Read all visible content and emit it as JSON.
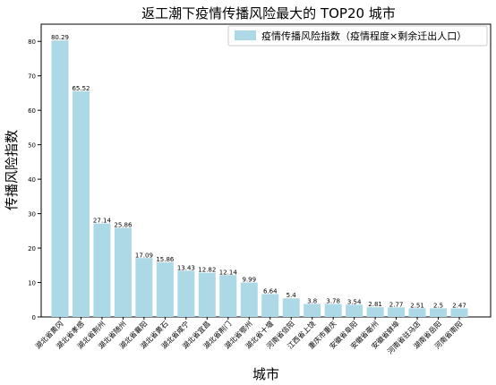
{
  "chart_data": {
    "type": "bar",
    "title": "返工潮下疫情传播风险最大的 TOP20 城市",
    "xlabel": "城市",
    "ylabel": "传播风险指数",
    "ylim": [
      0,
      85
    ],
    "yticks": [
      0,
      10,
      20,
      30,
      40,
      50,
      60,
      70,
      80
    ],
    "legend_position": "top-right",
    "grid": false,
    "series": [
      {
        "name": "疫情传播风险指数（疫情程度×剩余迁出人口）",
        "color": "#add8e6"
      }
    ],
    "categories": [
      "湖北省黄冈",
      "湖北省孝感",
      "湖北省荆州",
      "湖北省随州",
      "湖北省襄阳",
      "湖北省黄石",
      "湖北省咸宁",
      "湖北省宜昌",
      "湖北省荆门",
      "湖北省鄂州",
      "湖北省十堰",
      "河南省信阳",
      "江西省上饶",
      "重庆市重庆",
      "安徽省阜阳",
      "安徽省亳州",
      "安徽省蚌埠",
      "河南省驻马店",
      "湖南省岳阳",
      "河南省南阳"
    ],
    "values": [
      80.29,
      65.52,
      27.14,
      25.86,
      17.09,
      15.86,
      13.43,
      12.82,
      12.14,
      9.99,
      6.64,
      5.4,
      3.8,
      3.78,
      3.54,
      2.81,
      2.77,
      2.51,
      2.5,
      2.47
    ],
    "value_labels": [
      "80.29",
      "65.52",
      "27.14",
      "25.86",
      "17.09",
      "15.86",
      "13.43",
      "12.82",
      "12.14",
      "9.99",
      "6.64",
      "5.4",
      "3.8",
      "3.78",
      "3.54",
      "2.81",
      "2.77",
      "2.51",
      "2.5",
      "2.47"
    ]
  }
}
